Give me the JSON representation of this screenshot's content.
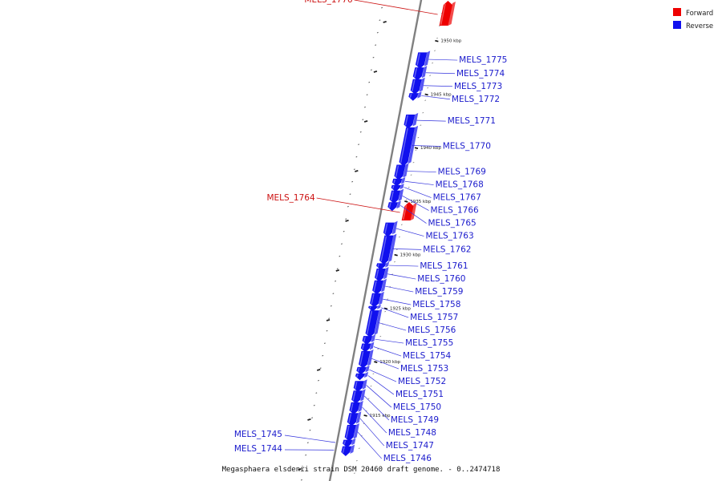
{
  "caption": "Megasphaera elsdenii strain DSM 20460 draft genome. - 0..2474718",
  "legend": {
    "forward": {
      "label": "Forward",
      "color": "#ee0000"
    },
    "reverse": {
      "label": "Reverse",
      "color": "#1010ee"
    }
  },
  "colors": {
    "backbone": "#808080",
    "forward_label": "#cc1111",
    "reverse_label": "#1a1acc",
    "leader": "#3333dd"
  },
  "ticks": [
    {
      "pos": 1915,
      "label": "1915 kbp"
    },
    {
      "pos": 1920,
      "label": "1920 kbp"
    },
    {
      "pos": 1925,
      "label": "1925 kbp"
    },
    {
      "pos": 1930,
      "label": "1930 kbp"
    },
    {
      "pos": 1935,
      "label": "1935 kbp"
    },
    {
      "pos": 1940,
      "label": "1940 kbp"
    },
    {
      "pos": 1945,
      "label": "1945 kbp"
    },
    {
      "pos": 1950,
      "label": "1950 kbp"
    }
  ],
  "genes": [
    {
      "name": "MELS_1776",
      "strand": "forward",
      "start": 1951.4,
      "end": 1953.5
    },
    {
      "name": "MELS_1775",
      "strand": "reverse",
      "start": 1947.6,
      "end": 1948.9
    },
    {
      "name": "MELS_1774",
      "strand": "reverse",
      "start": 1946.5,
      "end": 1947.5
    },
    {
      "name": "MELS_1773",
      "strand": "reverse",
      "start": 1945.2,
      "end": 1946.4
    },
    {
      "name": "MELS_1772",
      "strand": "reverse",
      "start": 1944.6,
      "end": 1945.1
    },
    {
      "name": "MELS_1771",
      "strand": "reverse",
      "start": 1942.0,
      "end": 1943.1
    },
    {
      "name": "MELS_1770",
      "strand": "reverse",
      "start": 1938.5,
      "end": 1941.9
    },
    {
      "name": "MELS_1769",
      "strand": "reverse",
      "start": 1937.2,
      "end": 1938.4
    },
    {
      "name": "MELS_1768",
      "strand": "reverse",
      "start": 1936.6,
      "end": 1937.1
    },
    {
      "name": "MELS_1767",
      "strand": "reverse",
      "start": 1936.1,
      "end": 1936.5
    },
    {
      "name": "MELS_1766",
      "strand": "reverse",
      "start": 1935.0,
      "end": 1936.0
    },
    {
      "name": "MELS_1765",
      "strand": "reverse",
      "start": 1934.3,
      "end": 1934.9
    },
    {
      "name": "MELS_1764",
      "strand": "forward",
      "start": 1933.2,
      "end": 1934.7
    },
    {
      "name": "MELS_1763",
      "strand": "reverse",
      "start": 1931.9,
      "end": 1933.0
    },
    {
      "name": "MELS_1762",
      "strand": "reverse",
      "start": 1929.3,
      "end": 1931.8
    },
    {
      "name": "MELS_1761",
      "strand": "reverse",
      "start": 1928.8,
      "end": 1929.2
    },
    {
      "name": "MELS_1760",
      "strand": "reverse",
      "start": 1927.7,
      "end": 1928.7
    },
    {
      "name": "MELS_1759",
      "strand": "reverse",
      "start": 1926.5,
      "end": 1927.6
    },
    {
      "name": "MELS_1758",
      "strand": "reverse",
      "start": 1925.3,
      "end": 1926.4
    },
    {
      "name": "MELS_1757",
      "strand": "reverse",
      "start": 1924.9,
      "end": 1925.2
    },
    {
      "name": "MELS_1756",
      "strand": "reverse",
      "start": 1922.5,
      "end": 1924.8
    },
    {
      "name": "MELS_1755",
      "strand": "reverse",
      "start": 1921.8,
      "end": 1922.4
    },
    {
      "name": "MELS_1754",
      "strand": "reverse",
      "start": 1921.1,
      "end": 1921.7
    },
    {
      "name": "MELS_1753",
      "strand": "reverse",
      "start": 1919.6,
      "end": 1921.0
    },
    {
      "name": "MELS_1752",
      "strand": "reverse",
      "start": 1919.0,
      "end": 1919.5
    },
    {
      "name": "MELS_1751",
      "strand": "reverse",
      "start": 1918.5,
      "end": 1918.9
    },
    {
      "name": "MELS_1750",
      "strand": "reverse",
      "start": 1917.4,
      "end": 1918.2
    },
    {
      "name": "MELS_1749",
      "strand": "reverse",
      "start": 1916.3,
      "end": 1917.3
    },
    {
      "name": "MELS_1748",
      "strand": "reverse",
      "start": 1915.3,
      "end": 1916.2
    },
    {
      "name": "MELS_1747",
      "strand": "reverse",
      "start": 1914.2,
      "end": 1915.2
    },
    {
      "name": "MELS_1746",
      "strand": "reverse",
      "start": 1912.8,
      "end": 1914.1
    },
    {
      "name": "MELS_1745",
      "strand": "reverse",
      "start": 1912.2,
      "end": 1912.7
    },
    {
      "name": "MELS_1744",
      "strand": "reverse",
      "start": 1911.4,
      "end": 1912.1
    }
  ]
}
